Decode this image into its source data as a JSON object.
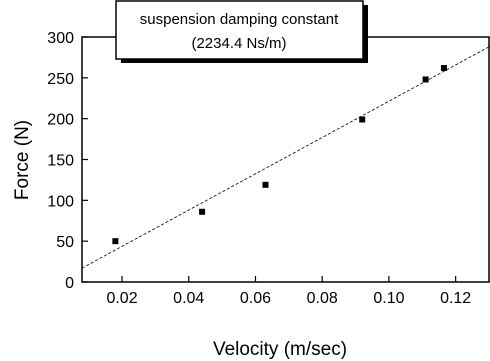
{
  "chart_data": {
    "type": "scatter",
    "xlabel": "Velocity (m/sec)",
    "ylabel": "Force (N)",
    "xlim": [
      0.008,
      0.13
    ],
    "ylim": [
      0,
      300
    ],
    "x_ticks": [
      0.02,
      0.04,
      0.06,
      0.08,
      0.1,
      0.12
    ],
    "x_tick_labels": [
      "0.02",
      "0.04",
      "0.06",
      "0.08",
      "0.10",
      "0.12"
    ],
    "y_ticks": [
      0,
      50,
      100,
      150,
      200,
      250,
      300
    ],
    "y_tick_labels": [
      "0",
      "50",
      "100",
      "150",
      "200",
      "250",
      "300"
    ],
    "series": [
      {
        "marker": "square",
        "color": "#000000",
        "points": [
          {
            "x": 0.018,
            "y": 50
          },
          {
            "x": 0.044,
            "y": 86
          },
          {
            "x": 0.063,
            "y": 119
          },
          {
            "x": 0.092,
            "y": 199
          },
          {
            "x": 0.111,
            "y": 248
          },
          {
            "x": 0.1165,
            "y": 262
          }
        ]
      }
    ],
    "fit_line": {
      "style": "dashed",
      "x": [
        0.008,
        0.13
      ],
      "y": [
        17,
        288
      ]
    },
    "annotation": {
      "line1": "suspension damping constant",
      "line2": "(2234.4 Ns/m)"
    },
    "grid": false
  }
}
